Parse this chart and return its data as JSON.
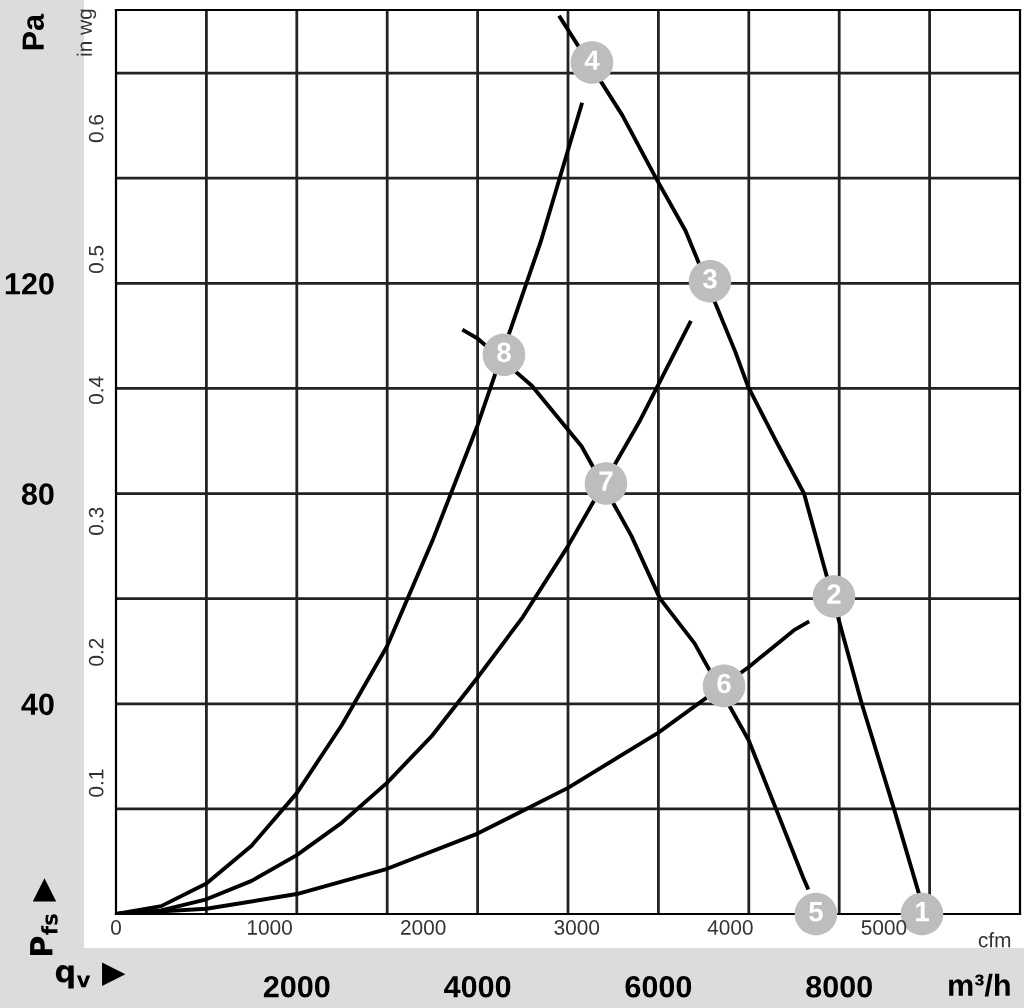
{
  "chart_data": {
    "type": "line",
    "xlabel": "m³/h",
    "ylabel": "Pa",
    "x2label": "cfm",
    "y2label": "in wg",
    "xlim": [
      0,
      10000
    ],
    "ylim": [
      0,
      172
    ],
    "xticks": [
      {
        "value": 1000,
        "label": null
      },
      2000,
      {
        "value": 3000,
        "label": null
      },
      4000,
      {
        "value": 5000,
        "label": null
      },
      6000,
      {
        "value": 7000,
        "label": null
      },
      8000,
      {
        "value": 9000,
        "label": null
      }
    ],
    "yticks": [
      {
        "value": 20,
        "label": null
      },
      40,
      {
        "value": 60,
        "label": null
      },
      80,
      {
        "value": 100,
        "label": null
      },
      120,
      {
        "value": 140,
        "label": null
      },
      {
        "value": 160,
        "label": null
      }
    ],
    "x2lim": [
      0,
      5886
    ],
    "x2ticks": [
      0,
      1000,
      2000,
      3000,
      4000,
      5000
    ],
    "y2lim": [
      0,
      0.6905
    ],
    "y2ticks": [
      0.1,
      0.2,
      0.3,
      0.4,
      0.5,
      0.6
    ],
    "grid": true,
    "annotations": [
      "q$_{v}$ ▶",
      "P$_{fs}$ ▶",
      {
        "text": "1",
        "x": 8916,
        "y": 0
      },
      {
        "text": "2",
        "x": 7942,
        "y": 60.4
      },
      {
        "text": "3",
        "x": 6571,
        "y": 120.4
      },
      {
        "text": "4",
        "x": 5265,
        "y": 162
      },
      {
        "text": "5",
        "x": 7743,
        "y": 0
      },
      {
        "text": "6",
        "x": 6726,
        "y": 43.4
      },
      {
        "text": "7",
        "x": 5420,
        "y": 81.9
      },
      {
        "text": "8",
        "x": 4292,
        "y": 106.4
      }
    ],
    "series": [
      {
        "color": "#000000",
        "x": [
          4912,
          5600,
          5973,
          6300,
          6850,
          6991,
          7300,
          7611,
          8250,
          8606,
          8880
        ],
        "values": [
          170.6,
          152,
          140,
          130,
          107,
          100.4,
          90,
          80,
          40,
          20,
          4
        ]
      },
      {
        "color": "#000000",
        "x": [
          3850,
          4000,
          4600,
          5150,
          5700,
          6018,
          6400,
          7000,
          7301,
          7600,
          7650
        ],
        "values": [
          111,
          109.5,
          100.5,
          89,
          72,
          60,
          51.5,
          33,
          20,
          7,
          5
        ]
      },
      {
        "color": "#000000",
        "x": [
          0,
          500,
          1000,
          1500,
          2000,
          2500,
          3000,
          3500,
          4000,
          4700,
          5150
        ],
        "values": [
          0,
          1.5,
          5.8,
          13,
          23,
          36,
          51,
          71,
          93,
          128,
          154
        ]
      },
      {
        "color": "#000000",
        "x": [
          0,
          500,
          1000,
          1500,
          2000,
          2500,
          3000,
          3500,
          4000,
          4500,
          5000,
          5800,
          6350
        ],
        "values": [
          0,
          0.7,
          2.8,
          6.3,
          11.2,
          17.4,
          25,
          34,
          45,
          56.5,
          70,
          94,
          112.5
        ]
      },
      {
        "color": "#000000",
        "x": [
          0,
          1000,
          2000,
          3000,
          4000,
          5000,
          6000,
          7000,
          7500,
          7650
        ],
        "values": [
          0,
          1,
          3.8,
          8.6,
          15.3,
          24,
          34.5,
          47,
          54,
          55.5
        ]
      }
    ]
  }
}
